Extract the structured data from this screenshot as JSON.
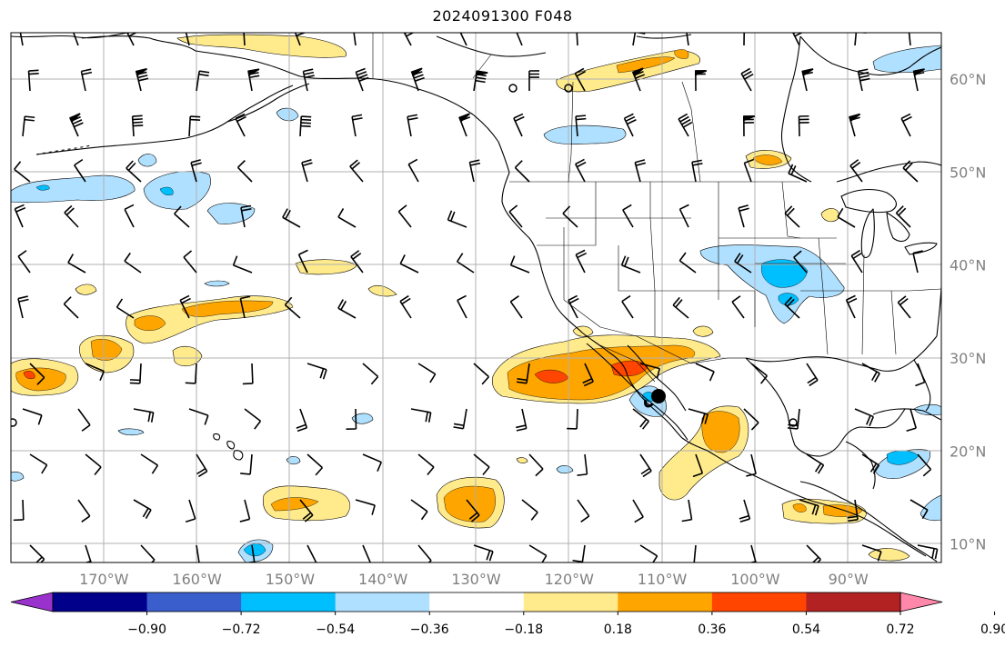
{
  "title": "2024091300 F048",
  "map": {
    "projection": "lat-lon",
    "lon_range": [
      -180,
      -80
    ],
    "lat_range": [
      8,
      65
    ],
    "lon_ticks": [
      {
        "lon": -170,
        "label": "170°W"
      },
      {
        "lon": -160,
        "label": "160°W"
      },
      {
        "lon": -150,
        "label": "150°W"
      },
      {
        "lon": -140,
        "label": "140°W"
      },
      {
        "lon": -130,
        "label": "130°W"
      },
      {
        "lon": -120,
        "label": "120°W"
      },
      {
        "lon": -110,
        "label": "110°W"
      },
      {
        "lon": -100,
        "label": "100°W"
      },
      {
        "lon": -90,
        "label": "90°W"
      }
    ],
    "lat_ticks": [
      {
        "lat": 10,
        "label": "10°N"
      },
      {
        "lat": 20,
        "label": "20°N"
      },
      {
        "lat": 30,
        "label": "30°N"
      },
      {
        "lat": 40,
        "label": "40°N"
      },
      {
        "lat": 50,
        "label": "50°N"
      },
      {
        "lat": 60,
        "label": "60°N"
      }
    ],
    "grid": true,
    "coastline_color": "#000000"
  },
  "colorbar": {
    "orientation": "horizontal",
    "extend": "both",
    "colors": [
      "#9932cc",
      "#00008b",
      "#3a5fcd",
      "#00bfff",
      "#b0e0ff",
      "#ffffff",
      "#ffea8c",
      "#ffa500",
      "#ff4500",
      "#b22222",
      "#ff88aa"
    ],
    "labels": [
      "−0.90",
      "−0.72",
      "−0.54",
      "−0.36",
      "−0.18",
      "0.18",
      "0.36",
      "0.54",
      "0.72",
      "0.90"
    ]
  },
  "contour_colors": {
    "pos1": "#ffea8c",
    "pos2": "#ffa500",
    "pos3": "#ff4500",
    "neg1": "#b0e0ff",
    "neg2": "#00bfff"
  }
}
